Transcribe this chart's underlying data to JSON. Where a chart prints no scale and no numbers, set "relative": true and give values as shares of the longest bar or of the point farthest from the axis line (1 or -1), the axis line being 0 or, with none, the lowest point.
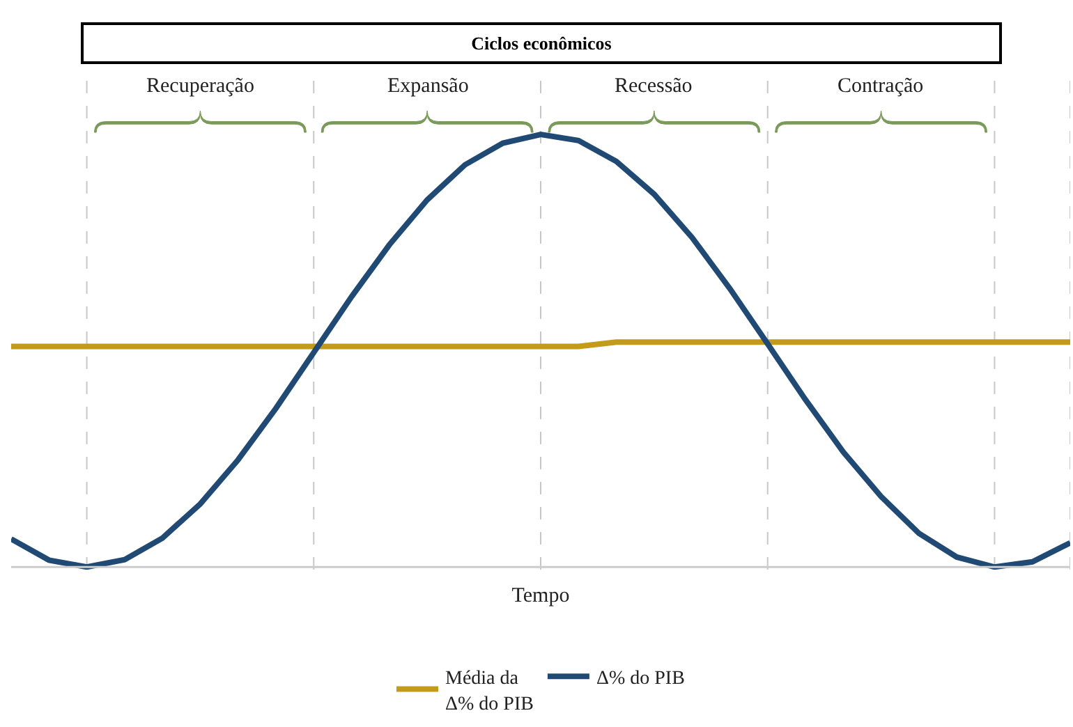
{
  "chart_data": {
    "type": "line",
    "title": "Ciclos econômicos",
    "xlabel": "Tempo",
    "relative": true,
    "categories": [
      null,
      null,
      null,
      null,
      null,
      null,
      null,
      null,
      null,
      null,
      null,
      null,
      null,
      null,
      null,
      null,
      null,
      null,
      null,
      null,
      null,
      null,
      null,
      null,
      null,
      null,
      null,
      null,
      null
    ],
    "legend": "bottom",
    "grid": "x",
    "series": [
      {
        "name": "Média da\nΔ% do PIB",
        "color": "#c49a1a",
        "values": [
          0.51,
          0.51,
          0.51,
          0.51,
          0.51,
          0.51,
          0.51,
          0.51,
          0.51,
          0.51,
          0.51,
          0.51,
          0.51,
          0.51,
          0.51,
          0.51,
          0.52,
          0.52,
          0.52,
          0.52,
          0.52,
          0.52,
          0.52,
          0.52,
          0.52,
          0.52,
          0.52,
          0.52,
          0.52
        ]
      },
      {
        "name": "Δ% do PIB",
        "color": "#204a74",
        "values": [
          0.065,
          0.016,
          0.0,
          0.017,
          0.067,
          0.146,
          0.248,
          0.367,
          0.496,
          0.625,
          0.745,
          0.849,
          0.93,
          0.98,
          1.0,
          0.986,
          0.938,
          0.862,
          0.762,
          0.644,
          0.516,
          0.387,
          0.266,
          0.163,
          0.078,
          0.023,
          0.0,
          0.012,
          0.056
        ]
      }
    ],
    "annotations": [
      "Recuperação",
      "Expansão",
      "Recessão",
      "Contração"
    ]
  }
}
